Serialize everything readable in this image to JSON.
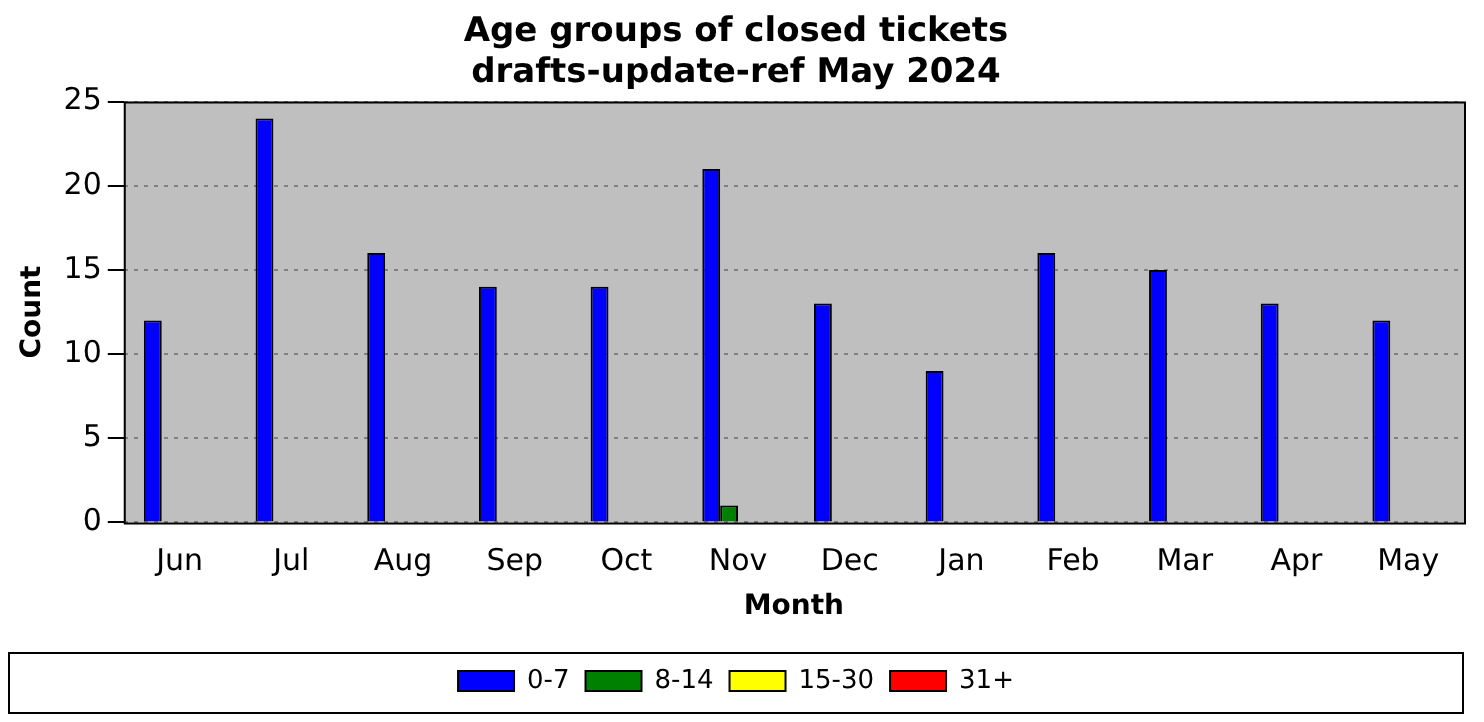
{
  "chart_data": {
    "type": "bar",
    "title": "Age groups of closed tickets",
    "subtitle": "drafts-update-ref May 2024",
    "xlabel": "Month",
    "ylabel": "Count",
    "categories": [
      "Jun",
      "Jul",
      "Aug",
      "Sep",
      "Oct",
      "Nov",
      "Dec",
      "Jan",
      "Feb",
      "Mar",
      "Apr",
      "May"
    ],
    "series": [
      {
        "name": "0-7",
        "color": "#0000ff",
        "values": [
          12,
          24,
          16,
          14,
          14,
          21,
          13,
          9,
          16,
          15,
          13,
          12
        ]
      },
      {
        "name": "8-14",
        "color": "#008000",
        "values": [
          0,
          0,
          0,
          0,
          0,
          1,
          0,
          0,
          0,
          0,
          0,
          0
        ]
      },
      {
        "name": "15-30",
        "color": "#ffff00",
        "values": [
          0,
          0,
          0,
          0,
          0,
          0,
          0,
          0,
          0,
          0,
          0,
          0
        ]
      },
      {
        "name": "31+",
        "color": "#ff0000",
        "values": [
          0,
          0,
          0,
          0,
          0,
          0,
          0,
          0,
          0,
          0,
          0,
          0
        ]
      }
    ],
    "ylim": [
      0,
      25
    ],
    "yticks": [
      0,
      5,
      10,
      15,
      20,
      25
    ],
    "grid": "y",
    "legend": "bottom"
  }
}
